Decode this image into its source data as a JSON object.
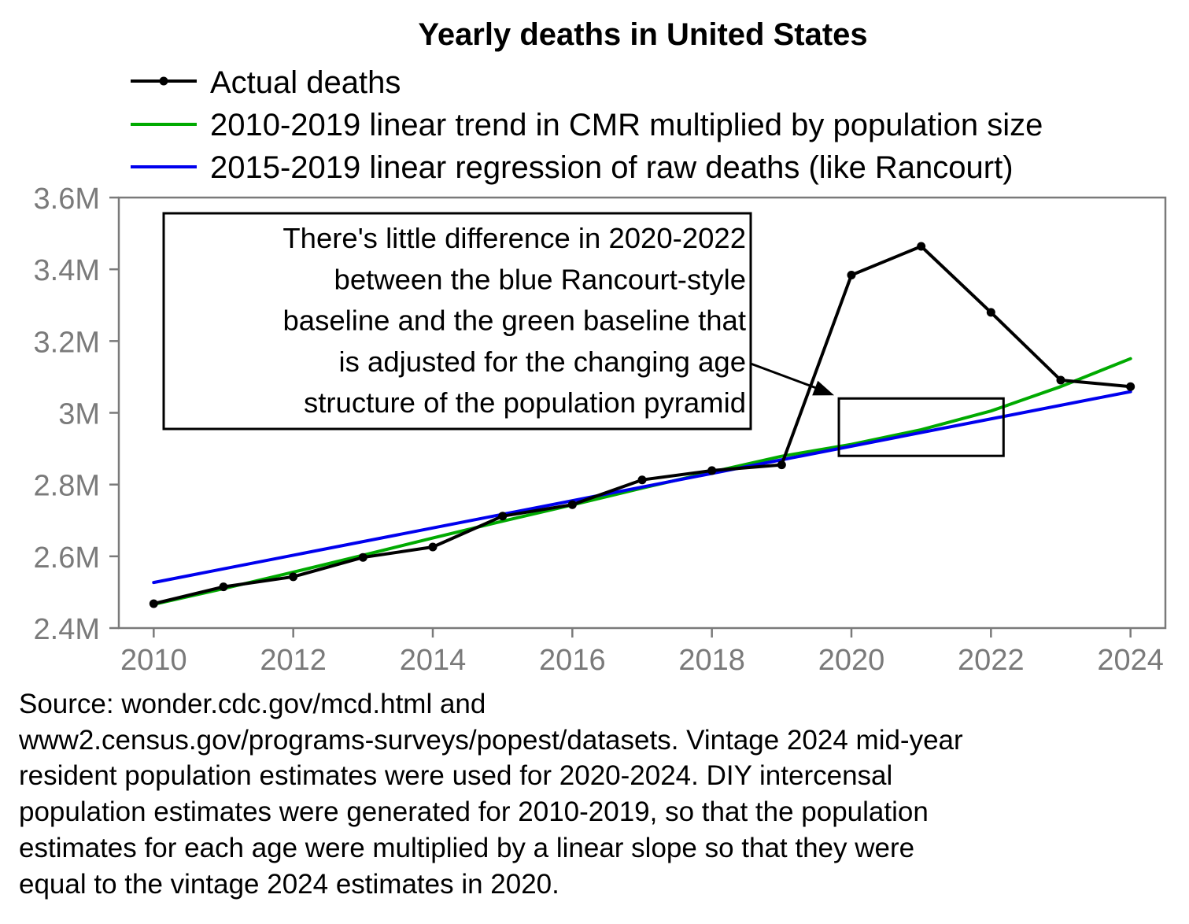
{
  "chart_data": {
    "type": "line",
    "title": "Yearly deaths in United States",
    "xlabel": "",
    "ylabel": "",
    "xlim": [
      2009.5,
      2024.5
    ],
    "ylim": [
      2400000,
      3600000
    ],
    "x_ticks": [
      2010,
      2012,
      2014,
      2016,
      2018,
      2020,
      2022,
      2024
    ],
    "x_tick_labels": [
      "2010",
      "2012",
      "2014",
      "2016",
      "2018",
      "2020",
      "2022",
      "2024"
    ],
    "y_ticks": [
      2400000,
      2600000,
      2800000,
      3000000,
      3200000,
      3400000,
      3600000
    ],
    "y_tick_labels": [
      "2.4M",
      "2.6M",
      "2.8M",
      "3M",
      "3.2M",
      "3.4M",
      "3.6M"
    ],
    "grid": false,
    "legend_position": "top-left",
    "series": [
      {
        "name": "Actual deaths",
        "color": "#000000",
        "markers": true,
        "x": [
          2010,
          2011,
          2012,
          2013,
          2014,
          2015,
          2016,
          2017,
          2018,
          2019,
          2020,
          2021,
          2022,
          2023,
          2024
        ],
        "values": [
          2468000,
          2515000,
          2543000,
          2597000,
          2626000,
          2712000,
          2744000,
          2813000,
          2839000,
          2855000,
          3384000,
          3464000,
          3280000,
          3091000,
          3073000
        ]
      },
      {
        "name": "2010-2019 linear trend in CMR multiplied by population size",
        "color": "#00aa00",
        "markers": false,
        "x": [
          2010,
          2011,
          2012,
          2013,
          2014,
          2015,
          2016,
          2017,
          2018,
          2019,
          2020,
          2021,
          2022,
          2023,
          2024
        ],
        "values": [
          2466000,
          2510000,
          2556000,
          2603000,
          2651000,
          2698000,
          2743000,
          2790000,
          2835000,
          2879000,
          2912000,
          2953000,
          3005000,
          3073000,
          3151000
        ]
      },
      {
        "name": "2015-2019 linear regression of raw deaths (like Rancourt)",
        "color": "#0000ee",
        "markers": false,
        "x": [
          2010,
          2024
        ],
        "values": [
          2527000,
          3059000
        ]
      }
    ],
    "annotations": [
      {
        "text_lines": [
          "There's little difference in 2020-2022",
          "between the blue Rancourt-style",
          "baseline and the green baseline that",
          "is adjusted for the changing age",
          "structure of the population pyramid"
        ],
        "highlight_x": [
          2019.82,
          2022.18
        ],
        "highlight_y": [
          2880000,
          3040000
        ]
      }
    ]
  },
  "source_lines": [
    "Source: wonder.cdc.gov/mcd.html and",
    "www2.census.gov/programs-surveys/popest/datasets. Vintage 2024 mid-year",
    "resident population estimates were used for 2020-2024. DIY intercensal",
    "population estimates were generated for 2010-2019, so that the population",
    "estimates for each age were multiplied by a linear slope so that they were",
    "equal to the vintage 2024 estimates in 2020."
  ]
}
